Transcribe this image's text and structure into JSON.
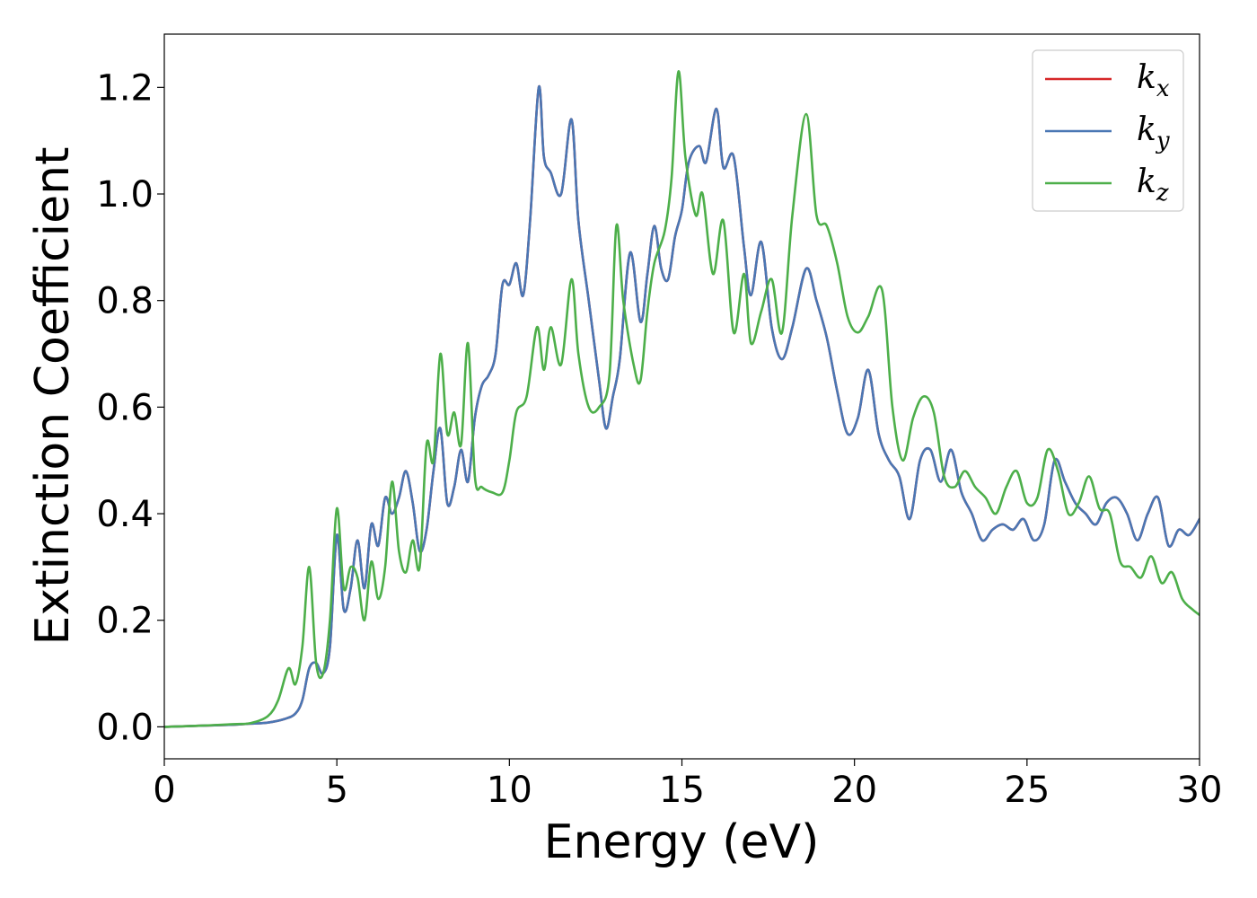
{
  "chart_data": {
    "type": "line",
    "xlabel": "Energy (eV)",
    "ylabel": "Extinction Coefficient",
    "xlim": [
      0,
      30
    ],
    "ylim": [
      -0.06,
      1.3
    ],
    "xticks": [
      0,
      5,
      10,
      15,
      20,
      25,
      30
    ],
    "xtick_labels": [
      "0",
      "5",
      "10",
      "15",
      "20",
      "25",
      "30"
    ],
    "yticks": [
      0.0,
      0.2,
      0.4,
      0.6,
      0.8,
      1.0,
      1.2
    ],
    "ytick_labels": [
      "0.0",
      "0.2",
      "0.4",
      "0.6",
      "0.8",
      "1.0",
      "1.2"
    ],
    "grid": false,
    "legend_position": "top-right",
    "series": [
      {
        "name": "k",
        "subscript": "x",
        "color": "#d62728",
        "x": [
          0,
          1,
          2,
          2.5,
          3,
          3.5,
          3.8,
          4.0,
          4.2,
          4.4,
          4.6,
          4.8,
          5.0,
          5.2,
          5.4,
          5.6,
          5.8,
          6.0,
          6.2,
          6.4,
          6.6,
          6.8,
          7.0,
          7.2,
          7.4,
          7.6,
          7.8,
          8.0,
          8.2,
          8.4,
          8.6,
          8.8,
          9.0,
          9.2,
          9.4,
          9.6,
          9.8,
          10.0,
          10.2,
          10.4,
          10.6,
          10.85,
          11.0,
          11.2,
          11.5,
          11.8,
          12.0,
          12.3,
          12.6,
          12.8,
          13.0,
          13.2,
          13.5,
          13.8,
          14.0,
          14.2,
          14.4,
          14.6,
          14.8,
          15.0,
          15.2,
          15.5,
          15.7,
          16.0,
          16.2,
          16.5,
          16.8,
          17.0,
          17.3,
          17.6,
          17.9,
          18.2,
          18.6,
          18.9,
          19.2,
          19.5,
          19.8,
          20.1,
          20.4,
          20.7,
          21.0,
          21.3,
          21.6,
          21.9,
          22.2,
          22.5,
          22.8,
          23.1,
          23.4,
          23.7,
          24.0,
          24.3,
          24.6,
          24.9,
          25.2,
          25.5,
          25.8,
          26.1,
          26.4,
          26.7,
          27.0,
          27.3,
          27.6,
          27.9,
          28.2,
          28.5,
          28.8,
          29.1,
          29.4,
          29.7,
          30.0
        ],
        "y": [
          0.0,
          0.002,
          0.004,
          0.006,
          0.008,
          0.015,
          0.025,
          0.05,
          0.11,
          0.12,
          0.1,
          0.15,
          0.36,
          0.22,
          0.26,
          0.35,
          0.26,
          0.38,
          0.34,
          0.43,
          0.4,
          0.43,
          0.48,
          0.42,
          0.33,
          0.37,
          0.48,
          0.56,
          0.42,
          0.45,
          0.52,
          0.46,
          0.58,
          0.64,
          0.66,
          0.7,
          0.83,
          0.83,
          0.87,
          0.81,
          0.95,
          1.2,
          1.07,
          1.04,
          1.0,
          1.14,
          0.95,
          0.8,
          0.65,
          0.56,
          0.62,
          0.69,
          0.89,
          0.76,
          0.85,
          0.94,
          0.86,
          0.84,
          0.92,
          0.97,
          1.06,
          1.09,
          1.06,
          1.16,
          1.05,
          1.07,
          0.9,
          0.81,
          0.91,
          0.75,
          0.69,
          0.75,
          0.86,
          0.8,
          0.73,
          0.63,
          0.55,
          0.58,
          0.67,
          0.55,
          0.5,
          0.47,
          0.39,
          0.5,
          0.52,
          0.46,
          0.52,
          0.44,
          0.4,
          0.35,
          0.37,
          0.38,
          0.37,
          0.39,
          0.35,
          0.38,
          0.5,
          0.46,
          0.42,
          0.4,
          0.38,
          0.42,
          0.43,
          0.4,
          0.35,
          0.4,
          0.43,
          0.34,
          0.37,
          0.36,
          0.39
        ]
      },
      {
        "name": "k",
        "subscript": "y",
        "color": "#4a77b4",
        "x": [
          0,
          1,
          2,
          2.5,
          3,
          3.5,
          3.8,
          4.0,
          4.2,
          4.4,
          4.6,
          4.8,
          5.0,
          5.2,
          5.4,
          5.6,
          5.8,
          6.0,
          6.2,
          6.4,
          6.6,
          6.8,
          7.0,
          7.2,
          7.4,
          7.6,
          7.8,
          8.0,
          8.2,
          8.4,
          8.6,
          8.8,
          9.0,
          9.2,
          9.4,
          9.6,
          9.8,
          10.0,
          10.2,
          10.4,
          10.6,
          10.85,
          11.0,
          11.2,
          11.5,
          11.8,
          12.0,
          12.3,
          12.6,
          12.8,
          13.0,
          13.2,
          13.5,
          13.8,
          14.0,
          14.2,
          14.4,
          14.6,
          14.8,
          15.0,
          15.2,
          15.5,
          15.7,
          16.0,
          16.2,
          16.5,
          16.8,
          17.0,
          17.3,
          17.6,
          17.9,
          18.2,
          18.6,
          18.9,
          19.2,
          19.5,
          19.8,
          20.1,
          20.4,
          20.7,
          21.0,
          21.3,
          21.6,
          21.9,
          22.2,
          22.5,
          22.8,
          23.1,
          23.4,
          23.7,
          24.0,
          24.3,
          24.6,
          24.9,
          25.2,
          25.5,
          25.8,
          26.1,
          26.4,
          26.7,
          27.0,
          27.3,
          27.6,
          27.9,
          28.2,
          28.5,
          28.8,
          29.1,
          29.4,
          29.7,
          30.0
        ],
        "y": [
          0.0,
          0.002,
          0.004,
          0.006,
          0.008,
          0.015,
          0.025,
          0.05,
          0.11,
          0.12,
          0.1,
          0.15,
          0.36,
          0.22,
          0.26,
          0.35,
          0.26,
          0.38,
          0.34,
          0.43,
          0.4,
          0.43,
          0.48,
          0.42,
          0.33,
          0.37,
          0.48,
          0.56,
          0.42,
          0.45,
          0.52,
          0.46,
          0.58,
          0.64,
          0.66,
          0.7,
          0.83,
          0.83,
          0.87,
          0.81,
          0.95,
          1.2,
          1.07,
          1.04,
          1.0,
          1.14,
          0.95,
          0.8,
          0.65,
          0.56,
          0.62,
          0.69,
          0.89,
          0.76,
          0.85,
          0.94,
          0.86,
          0.84,
          0.92,
          0.97,
          1.06,
          1.09,
          1.06,
          1.16,
          1.05,
          1.07,
          0.9,
          0.81,
          0.91,
          0.75,
          0.69,
          0.75,
          0.86,
          0.8,
          0.73,
          0.63,
          0.55,
          0.58,
          0.67,
          0.55,
          0.5,
          0.47,
          0.39,
          0.5,
          0.52,
          0.46,
          0.52,
          0.44,
          0.4,
          0.35,
          0.37,
          0.38,
          0.37,
          0.39,
          0.35,
          0.38,
          0.5,
          0.46,
          0.42,
          0.4,
          0.38,
          0.42,
          0.43,
          0.4,
          0.35,
          0.4,
          0.43,
          0.34,
          0.37,
          0.36,
          0.39
        ]
      },
      {
        "name": "k",
        "subscript": "z",
        "color": "#4daf4a",
        "x": [
          0,
          1,
          2,
          2.5,
          3,
          3.3,
          3.6,
          3.8,
          4.0,
          4.2,
          4.4,
          4.6,
          4.8,
          5.0,
          5.2,
          5.4,
          5.6,
          5.8,
          6.0,
          6.2,
          6.4,
          6.6,
          6.8,
          7.0,
          7.2,
          7.4,
          7.6,
          7.8,
          8.0,
          8.2,
          8.4,
          8.6,
          8.8,
          9.0,
          9.2,
          9.5,
          9.8,
          10.0,
          10.2,
          10.5,
          10.8,
          11.0,
          11.2,
          11.5,
          11.8,
          12.0,
          12.3,
          12.6,
          12.9,
          13.1,
          13.3,
          13.6,
          13.8,
          14.0,
          14.2,
          14.5,
          14.7,
          14.9,
          15.1,
          15.4,
          15.6,
          15.9,
          16.2,
          16.5,
          16.8,
          17.0,
          17.3,
          17.6,
          17.9,
          18.2,
          18.6,
          18.9,
          19.2,
          19.5,
          19.8,
          20.1,
          20.4,
          20.8,
          21.1,
          21.4,
          21.7,
          22.0,
          22.3,
          22.6,
          22.9,
          23.2,
          23.5,
          23.8,
          24.1,
          24.4,
          24.7,
          25.0,
          25.3,
          25.6,
          25.9,
          26.2,
          26.5,
          26.8,
          27.1,
          27.4,
          27.7,
          28.0,
          28.3,
          28.6,
          28.9,
          29.2,
          29.5,
          29.8,
          30.0
        ],
        "y": [
          0.0,
          0.002,
          0.005,
          0.007,
          0.02,
          0.05,
          0.11,
          0.08,
          0.15,
          0.3,
          0.12,
          0.1,
          0.2,
          0.41,
          0.26,
          0.3,
          0.28,
          0.2,
          0.31,
          0.24,
          0.3,
          0.46,
          0.33,
          0.29,
          0.35,
          0.3,
          0.53,
          0.5,
          0.7,
          0.55,
          0.59,
          0.53,
          0.72,
          0.47,
          0.45,
          0.44,
          0.44,
          0.5,
          0.59,
          0.62,
          0.75,
          0.67,
          0.75,
          0.68,
          0.84,
          0.7,
          0.6,
          0.6,
          0.66,
          0.94,
          0.8,
          0.68,
          0.65,
          0.78,
          0.87,
          0.93,
          1.03,
          1.23,
          1.07,
          0.96,
          1.0,
          0.85,
          0.95,
          0.74,
          0.85,
          0.72,
          0.78,
          0.84,
          0.74,
          0.96,
          1.15,
          0.96,
          0.94,
          0.87,
          0.77,
          0.74,
          0.77,
          0.82,
          0.6,
          0.5,
          0.58,
          0.62,
          0.59,
          0.47,
          0.45,
          0.48,
          0.45,
          0.43,
          0.4,
          0.45,
          0.48,
          0.42,
          0.43,
          0.52,
          0.48,
          0.4,
          0.42,
          0.47,
          0.41,
          0.4,
          0.31,
          0.3,
          0.28,
          0.32,
          0.27,
          0.29,
          0.24,
          0.22,
          0.21
        ]
      }
    ]
  }
}
